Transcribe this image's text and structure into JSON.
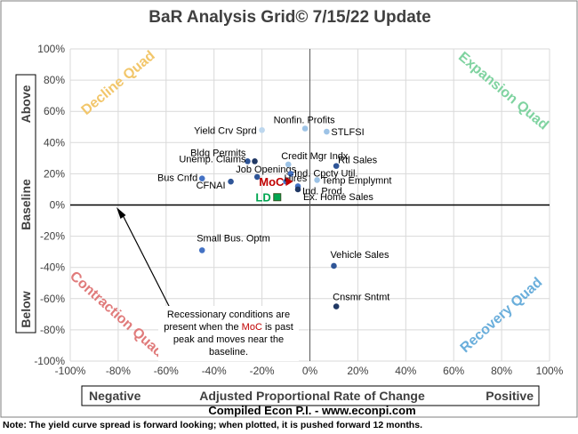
{
  "chart_data": {
    "type": "scatter",
    "title": "BaR Analysis Grid© 7/15/22 Update",
    "xlabel": "Adjusted Proportional Rate of Change",
    "x_left_label": "Negative",
    "x_right_label": "Positive",
    "ylabel_parts": [
      "Above",
      "Baseline",
      "Below"
    ],
    "xlim": [
      -100,
      100
    ],
    "ylim": [
      -100,
      100
    ],
    "x_ticks": [
      "-100%",
      "-80%",
      "-60%",
      "-40%",
      "-20%",
      "0%",
      "20%",
      "40%",
      "60%",
      "80%",
      "100%"
    ],
    "y_ticks": [
      "100%",
      "80%",
      "60%",
      "40%",
      "20%",
      "0%",
      "-20%",
      "-40%",
      "-60%",
      "-80%",
      "-100%"
    ],
    "quadrants": {
      "top_left": "Decline Quad",
      "top_right": "Expansion Quad",
      "bottom_left": "Contraction Quad",
      "bottom_right": "Recovery Quad"
    },
    "quadrant_colors": {
      "top_left": "#f2c66a",
      "top_right": "#7fd3a0",
      "bottom_left": "#e07b7b",
      "bottom_right": "#6aaedb"
    },
    "points": [
      {
        "label": "Nonfin. Profits",
        "x": -2,
        "y": 49,
        "color": "#9dc3e6"
      },
      {
        "label": "STLFSI",
        "x": 7,
        "y": 47,
        "color": "#9dc3e6"
      },
      {
        "label": "Yield Crv Sprd",
        "x": -20,
        "y": 48,
        "color": "#bdd7ee"
      },
      {
        "label": "Bldg Permits",
        "x": -26,
        "y": 28,
        "color": "#2f5597"
      },
      {
        "label": "Unemp. Claims",
        "x": -23,
        "y": 28,
        "color": "#203864"
      },
      {
        "label": "Credit Mgr Indx",
        "x": -9,
        "y": 26,
        "color": "#9dc3e6"
      },
      {
        "label": "Rtl Sales",
        "x": 11,
        "y": 25,
        "color": "#2f5597"
      },
      {
        "label": "Job Openings",
        "x": -22,
        "y": 18,
        "color": "#2f5597"
      },
      {
        "label": "Bus Cnfd",
        "x": -45,
        "y": 17,
        "color": "#4472c4"
      },
      {
        "label": "CFNAI",
        "x": -33,
        "y": 15,
        "color": "#2f5597"
      },
      {
        "label": "Ind. Cpcty Util.",
        "x": -8,
        "y": 20,
        "color": "#4472c4"
      },
      {
        "label": "Temp Emplymnt",
        "x": 3,
        "y": 16,
        "color": "#9dc3e6"
      },
      {
        "label": "Hires",
        "x": -10,
        "y": 15,
        "color": "#4472c4"
      },
      {
        "label": "Ind. Prod.",
        "x": -5,
        "y": 12,
        "color": "#4472c4"
      },
      {
        "label": "Ex. Home Sales",
        "x": -5,
        "y": 10,
        "color": "#203864"
      },
      {
        "label": "Small Bus. Optm",
        "x": -45,
        "y": -29,
        "color": "#4472c4"
      },
      {
        "label": "Vehicle Sales",
        "x": 10,
        "y": -39,
        "color": "#2f5597"
      },
      {
        "label": "Cnsmr Sntmt",
        "x": 11,
        "y": -65,
        "color": "#203864"
      }
    ],
    "extra_markers": [
      {
        "label": "MoC",
        "x": -13,
        "y": 15,
        "color": "#c00000"
      },
      {
        "label": "LD",
        "x": -14,
        "y": 5,
        "color": "#00a651"
      }
    ],
    "annotation": {
      "text_before": "Recessionary conditions are present when the ",
      "highlight": "MoC",
      "text_after": " is past peak and moves near the baseline.",
      "highlight_color": "#c00000"
    },
    "source": "Compiled Econ P.I. - www.econpi.com",
    "grid": true,
    "legend": "none"
  },
  "footer_note": "Note: The yield curve spread is forward looking; when plotted, it is pushed forward 12 months."
}
